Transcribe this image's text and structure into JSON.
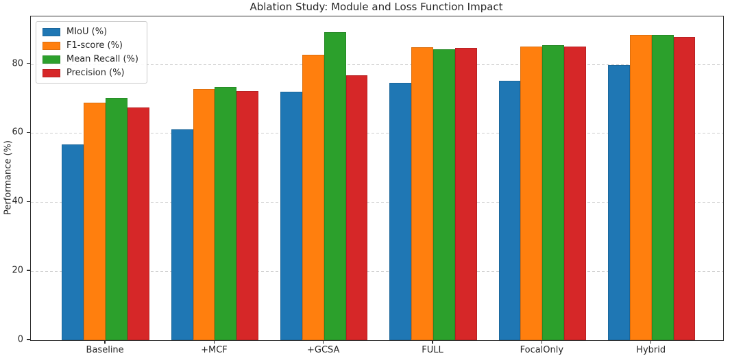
{
  "chart_data": {
    "type": "bar",
    "title": "Ablation Study: Module and Loss Function Impact",
    "xlabel": "",
    "ylabel": "Performance (%)",
    "categories": [
      "Baseline",
      "+MCF",
      "+GCSA",
      "FULL",
      "FocalOnly",
      "Hybrid"
    ],
    "series": [
      {
        "name": "MIoU (%)",
        "color": "#1f77b4",
        "values": [
          56.7,
          61.0,
          72.0,
          74.5,
          75.1,
          79.8
        ]
      },
      {
        "name": "F1-score (%)",
        "color": "#ff7f0e",
        "values": [
          68.9,
          72.8,
          82.6,
          84.8,
          85.1,
          88.4
        ]
      },
      {
        "name": "Mean Recall (%)",
        "color": "#2ca02c",
        "values": [
          70.2,
          73.4,
          89.2,
          84.3,
          85.4,
          88.4
        ]
      },
      {
        "name": "Precision (%)",
        "color": "#d62728",
        "values": [
          67.5,
          72.1,
          76.7,
          84.7,
          85.1,
          87.9
        ]
      }
    ],
    "yticks": [
      0,
      20,
      40,
      60,
      80
    ],
    "ylim": [
      0,
      93.8
    ],
    "grid": "horizontal-dashed",
    "grid_color": "#cccccc",
    "legend_position": "upper-left",
    "axis_color": "#2f2f2f",
    "text_color": "#262626",
    "bar_group_width": 0.8
  }
}
